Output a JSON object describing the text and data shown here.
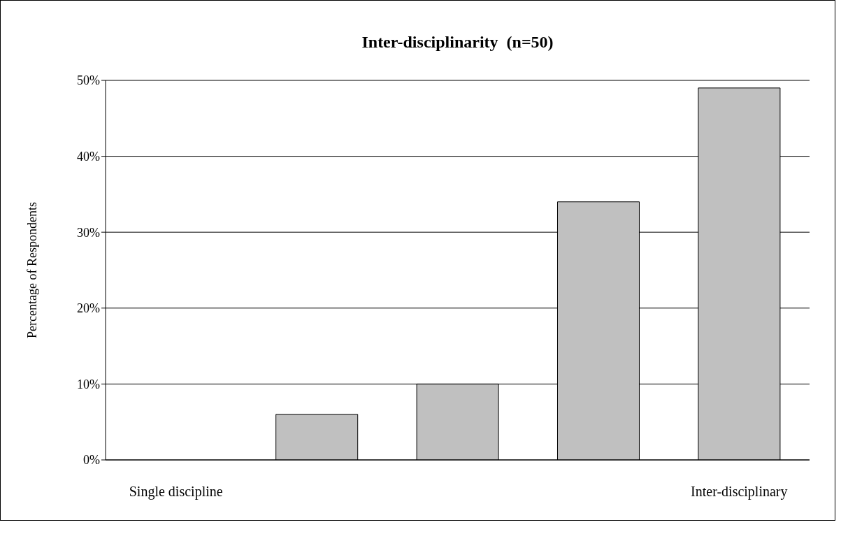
{
  "chart_data": {
    "type": "bar",
    "title": "Inter-disciplinarity  (n=50)",
    "ylabel": "Percentage of Respondents",
    "categories": [
      "Single discipline",
      null,
      null,
      null,
      "Inter-disciplinary"
    ],
    "values": [
      0,
      6,
      10,
      34,
      49
    ],
    "color": "#c0c0c0",
    "ylim": [
      0,
      50
    ],
    "yticks": [
      {
        "value": 0,
        "label": "0%"
      },
      {
        "value": 10,
        "label": "10%"
      },
      {
        "value": 20,
        "label": "20%"
      },
      {
        "value": 30,
        "label": "30%"
      },
      {
        "value": 40,
        "label": "40%"
      },
      {
        "value": 50,
        "label": "50%"
      }
    ],
    "grid": "y",
    "legend": false
  }
}
